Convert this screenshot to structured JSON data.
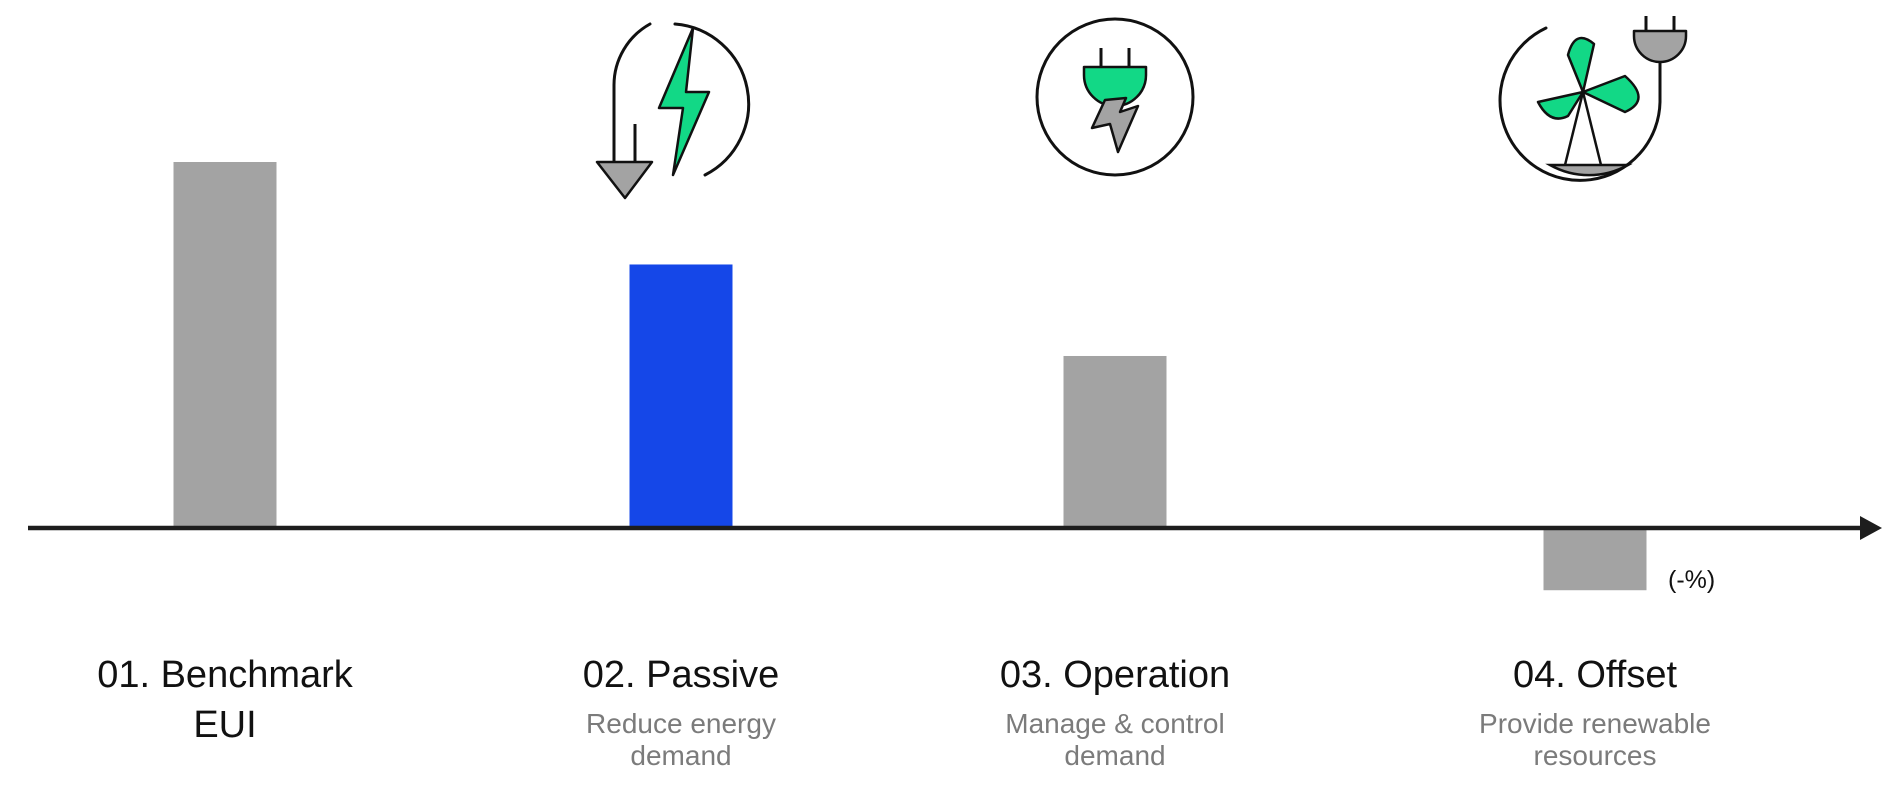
{
  "colors": {
    "bar_default": "#a3a3a3",
    "bar_highlight": "#1547e8",
    "axis": "#1d1d1d",
    "icon_green": "#12d886",
    "icon_gray": "#a3a3a3",
    "icon_stroke": "#111111",
    "title_text": "#111111",
    "subtitle_text": "#7b7b7b"
  },
  "chart_data": {
    "type": "bar",
    "title": "",
    "xlabel": "",
    "ylabel": "",
    "grid": false,
    "y_axis_shown": false,
    "ylim": [
      -0.2,
      1.15
    ],
    "categories": [
      "01. Benchmark EUI",
      "02. Passive",
      "03. Operation",
      "04. Offset"
    ],
    "values": [
      1.0,
      0.72,
      0.47,
      -0.17
    ],
    "highlighted_index": 1,
    "negative_label": "(-%)",
    "steps": [
      {
        "title_lines": [
          "01. Benchmark",
          "EUI"
        ],
        "subtitle_lines": [],
        "icon": "none"
      },
      {
        "title_lines": [
          "02. Passive"
        ],
        "subtitle_lines": [
          "Reduce energy",
          "demand"
        ],
        "icon": "power-down-icon"
      },
      {
        "title_lines": [
          "03. Operation"
        ],
        "subtitle_lines": [
          "Manage & control",
          "demand"
        ],
        "icon": "plug-bolt-icon"
      },
      {
        "title_lines": [
          "04. Offset"
        ],
        "subtitle_lines": [
          "Provide renewable",
          "resources"
        ],
        "icon": "wind-turbine-plug-icon"
      }
    ]
  }
}
